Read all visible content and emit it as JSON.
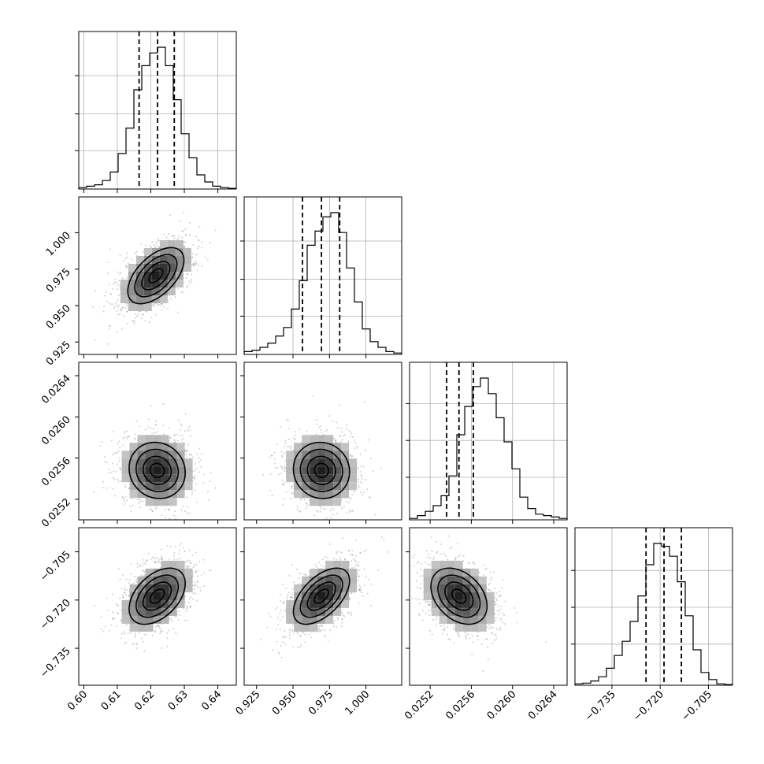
{
  "chart_data": {
    "type": "corner",
    "params": [
      {
        "range": [
          0.5985,
          0.6455
        ],
        "ticks": [
          0.6,
          0.61,
          0.62,
          0.63,
          0.64
        ],
        "tick_labels": [
          "0.60",
          "0.61",
          "0.62",
          "0.63",
          "0.64"
        ],
        "quantiles": [
          0.6165,
          0.622,
          0.627
        ],
        "hist": [
          0.01,
          0.02,
          0.03,
          0.06,
          0.12,
          0.25,
          0.43,
          0.7,
          0.87,
          0.96,
          1.0,
          0.87,
          0.63,
          0.39,
          0.22,
          0.1,
          0.05,
          0.02,
          0.01,
          0.005
        ],
        "hist_yticks": [
          0.27,
          0.53,
          0.8
        ]
      },
      {
        "range": [
          0.9165,
          1.0245
        ],
        "ticks": [
          0.925,
          0.95,
          0.975,
          1.0
        ],
        "tick_labels": [
          "0.925",
          "0.950",
          "0.975",
          "1.000"
        ],
        "quantiles": [
          0.9565,
          0.9695,
          0.982
        ],
        "hist": [
          0.02,
          0.03,
          0.05,
          0.08,
          0.13,
          0.19,
          0.32,
          0.52,
          0.77,
          0.87,
          0.97,
          1.0,
          0.86,
          0.61,
          0.37,
          0.18,
          0.09,
          0.05,
          0.02,
          0.01
        ],
        "hist_yticks": [
          0.27,
          0.53,
          0.8
        ]
      },
      {
        "range": [
          0.025,
          0.02653
        ],
        "ticks": [
          0.0252,
          0.0256,
          0.026,
          0.0264
        ],
        "tick_labels": [
          "0.0252",
          "0.0256",
          "0.0260",
          "0.0264"
        ],
        "quantiles": [
          0.02536,
          0.02548,
          0.02562
        ],
        "hist": [
          0.01,
          0.03,
          0.06,
          0.1,
          0.17,
          0.31,
          0.6,
          0.8,
          0.94,
          1.0,
          0.89,
          0.72,
          0.55,
          0.36,
          0.16,
          0.08,
          0.04,
          0.03,
          0.02,
          0.01
        ],
        "hist_yticks": [
          0.3,
          0.56,
          0.82
        ]
      },
      {
        "range": [
          -0.7465,
          -0.6975
        ],
        "ticks": [
          -0.735,
          -0.72,
          -0.705
        ],
        "tick_labels": [
          "−0.735",
          "−0.720",
          "−0.705"
        ],
        "quantiles": [
          -0.7244,
          -0.7188,
          -0.7134
        ],
        "hist": [
          0.01,
          0.015,
          0.03,
          0.06,
          0.12,
          0.21,
          0.31,
          0.45,
          0.63,
          0.85,
          1.0,
          0.98,
          0.91,
          0.73,
          0.49,
          0.25,
          0.09,
          0.04,
          0.01,
          0.005
        ],
        "hist_yticks": [
          0.29,
          0.55,
          0.81
        ]
      }
    ],
    "pairs": [
      {
        "row": 1,
        "col": 0,
        "center": [
          0.6215,
          0.9705
        ],
        "corr": 0.55
      },
      {
        "row": 2,
        "col": 0,
        "center": [
          0.6219,
          0.02548
        ],
        "corr": -0.08
      },
      {
        "row": 2,
        "col": 1,
        "center": [
          0.9695,
          0.02548
        ],
        "corr": -0.05
      },
      {
        "row": 3,
        "col": 0,
        "center": [
          0.6219,
          -0.7188
        ],
        "corr": 0.45
      },
      {
        "row": 3,
        "col": 1,
        "center": [
          0.9695,
          -0.7188
        ],
        "corr": 0.55
      },
      {
        "row": 3,
        "col": 2,
        "center": [
          0.02548,
          -0.7188
        ],
        "corr": -0.35
      }
    ],
    "grid": true,
    "xlabel": "",
    "ylabel": "",
    "title": ""
  }
}
